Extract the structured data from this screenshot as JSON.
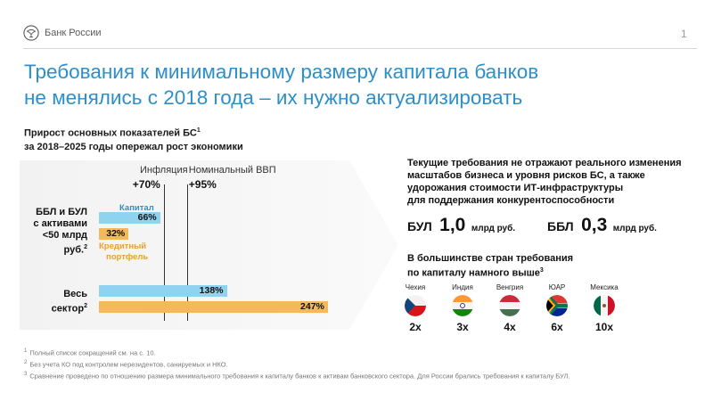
{
  "header": {
    "brand": "Банк России",
    "page_number": "1",
    "logo_icon": "bank-of-russia-eagle-icon"
  },
  "title": {
    "line1": "Требования к минимальному размеру капитала банков",
    "line2": "не менялись с 2018 года – их нужно актуализировать"
  },
  "left_panel": {
    "heading_line1": "Прирост основных показателей БС",
    "heading_sup": "1",
    "heading_line2": "за 2018–2025 годы опережал рост экономики",
    "benchmarks": [
      {
        "label": "Инфляция",
        "value": "+70%",
        "percent": 70
      },
      {
        "label": "Номинальный ВВП",
        "value": "+95%",
        "percent": 95
      }
    ],
    "groups": [
      {
        "label_lines": [
          "ББЛ и БУЛ",
          "с активами",
          "<50 млрд руб."
        ],
        "label_sup": "2",
        "bars": [
          {
            "name": "Капитал",
            "value_label": "66%",
            "percent": 66,
            "color": "#8fd3f0"
          },
          {
            "name_lines": [
              "Кредитный",
              "портфель"
            ],
            "value_label": "32%",
            "percent": 32,
            "color": "#f5b85a"
          }
        ]
      },
      {
        "label_lines": [
          "Весь",
          "сектор"
        ],
        "label_sup": "2",
        "bars": [
          {
            "value_label": "138%",
            "percent": 138,
            "color": "#8fd3f0"
          },
          {
            "value_label": "247%",
            "percent": 247,
            "color": "#f5b85a"
          }
        ]
      }
    ]
  },
  "right_panel": {
    "heading_lines": [
      "Текущие требования не отражают реального изменения",
      "масштабов бизнеса и уровня рисков БС, а также",
      "удорожания стоимости ИТ-инфраструктуры",
      "для поддержания конкурентоспособности"
    ],
    "requirements": [
      {
        "name": "БУЛ",
        "value": "1,0",
        "unit": "млрд руб."
      },
      {
        "name": "ББЛ",
        "value": "0,3",
        "unit": "млрд руб."
      }
    ],
    "countries_heading_line1": "В большинстве стран требования",
    "countries_heading_line2": "по капиталу намного выше",
    "countries_heading_sup": "3",
    "countries": [
      {
        "name": "Чехия",
        "multiplier": "2x",
        "flag": "czech-flag-icon"
      },
      {
        "name": "Индия",
        "multiplier": "3x",
        "flag": "india-flag-icon"
      },
      {
        "name": "Венгрия",
        "multiplier": "4x",
        "flag": "hungary-flag-icon"
      },
      {
        "name": "ЮАР",
        "multiplier": "6x",
        "flag": "south-africa-flag-icon"
      },
      {
        "name": "Мексика",
        "multiplier": "10x",
        "flag": "mexico-flag-icon"
      }
    ]
  },
  "footnotes": [
    {
      "num": "1",
      "text": "Полный список сокращений см. на с. 10."
    },
    {
      "num": "2",
      "text": "Без учета КО под контролем нерезидентов, санируемых и НКО."
    },
    {
      "num": "3",
      "text": "Сравнение проведено по отношению размера минимального требования к капиталу банков к активам банковского сектора. Для России брались требования к капиталу БУЛ."
    }
  ],
  "colors": {
    "accent": "#2d8fc9",
    "capital_bar": "#8fd3f0",
    "loans_bar": "#f5b85a",
    "loans_label": "#e8a030",
    "capital_label": "#2d8fc9"
  }
}
